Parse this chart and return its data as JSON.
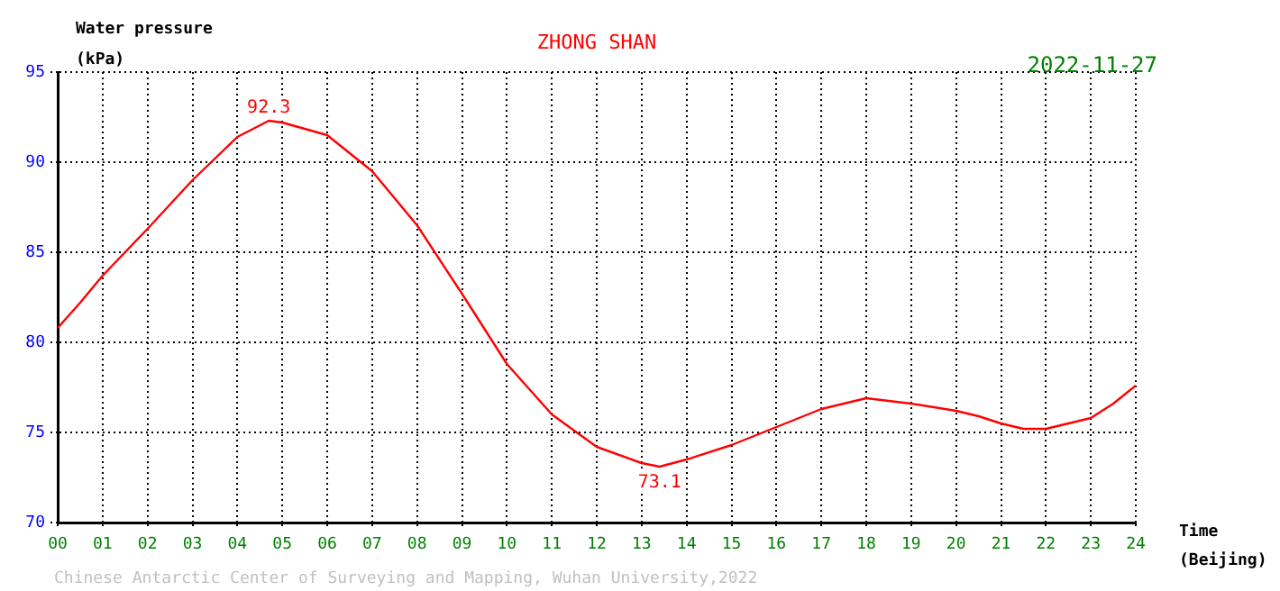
{
  "chart_data": {
    "type": "line",
    "title": "ZHONG SHAN",
    "subtitle": "2022-11-27",
    "ylabel": "Water pressure\n(kPa)",
    "xlabel": "Time\n(Beijing)",
    "x": [
      0,
      0.5,
      1,
      2,
      3,
      4,
      4.7,
      5,
      6,
      7,
      8,
      9,
      10,
      11,
      12,
      13,
      13.4,
      14,
      15,
      16,
      17,
      18,
      19,
      20,
      20.5,
      21,
      21.5,
      22,
      23,
      23.5,
      24
    ],
    "series": [
      {
        "color": "#ff0000",
        "values": [
          80.8,
          82.2,
          83.7,
          86.3,
          89.0,
          91.4,
          92.3,
          92.2,
          91.5,
          89.5,
          86.5,
          82.7,
          78.8,
          76.0,
          74.2,
          73.3,
          73.1,
          73.5,
          74.3,
          75.3,
          76.3,
          76.9,
          76.6,
          76.2,
          75.9,
          75.5,
          75.2,
          75.2,
          75.8,
          76.6,
          77.6
        ]
      }
    ],
    "xlim": [
      0,
      24
    ],
    "ylim": [
      70,
      95
    ],
    "xticks": [
      {
        "value": 0,
        "label": "00"
      },
      {
        "value": 1,
        "label": "01"
      },
      {
        "value": 2,
        "label": "02"
      },
      {
        "value": 3,
        "label": "03"
      },
      {
        "value": 4,
        "label": "04"
      },
      {
        "value": 5,
        "label": "05"
      },
      {
        "value": 6,
        "label": "06"
      },
      {
        "value": 7,
        "label": "07"
      },
      {
        "value": 8,
        "label": "08"
      },
      {
        "value": 9,
        "label": "09"
      },
      10,
      11,
      12,
      13,
      14,
      15,
      16,
      17,
      18,
      19,
      20,
      21,
      22,
      23,
      24
    ],
    "yticks": [
      70,
      75,
      80,
      85,
      90,
      95
    ],
    "annotations": [
      {
        "text": "92.3",
        "x": 4.7,
        "y": 92.3
      },
      {
        "text": "73.1",
        "x": 13.4,
        "y": 73.1
      },
      "Chinese Antarctic Center of Surveying and Mapping, Wuhan University,2022"
    ],
    "grid": true,
    "legend": false,
    "marker": "none",
    "line_style": "solid"
  }
}
